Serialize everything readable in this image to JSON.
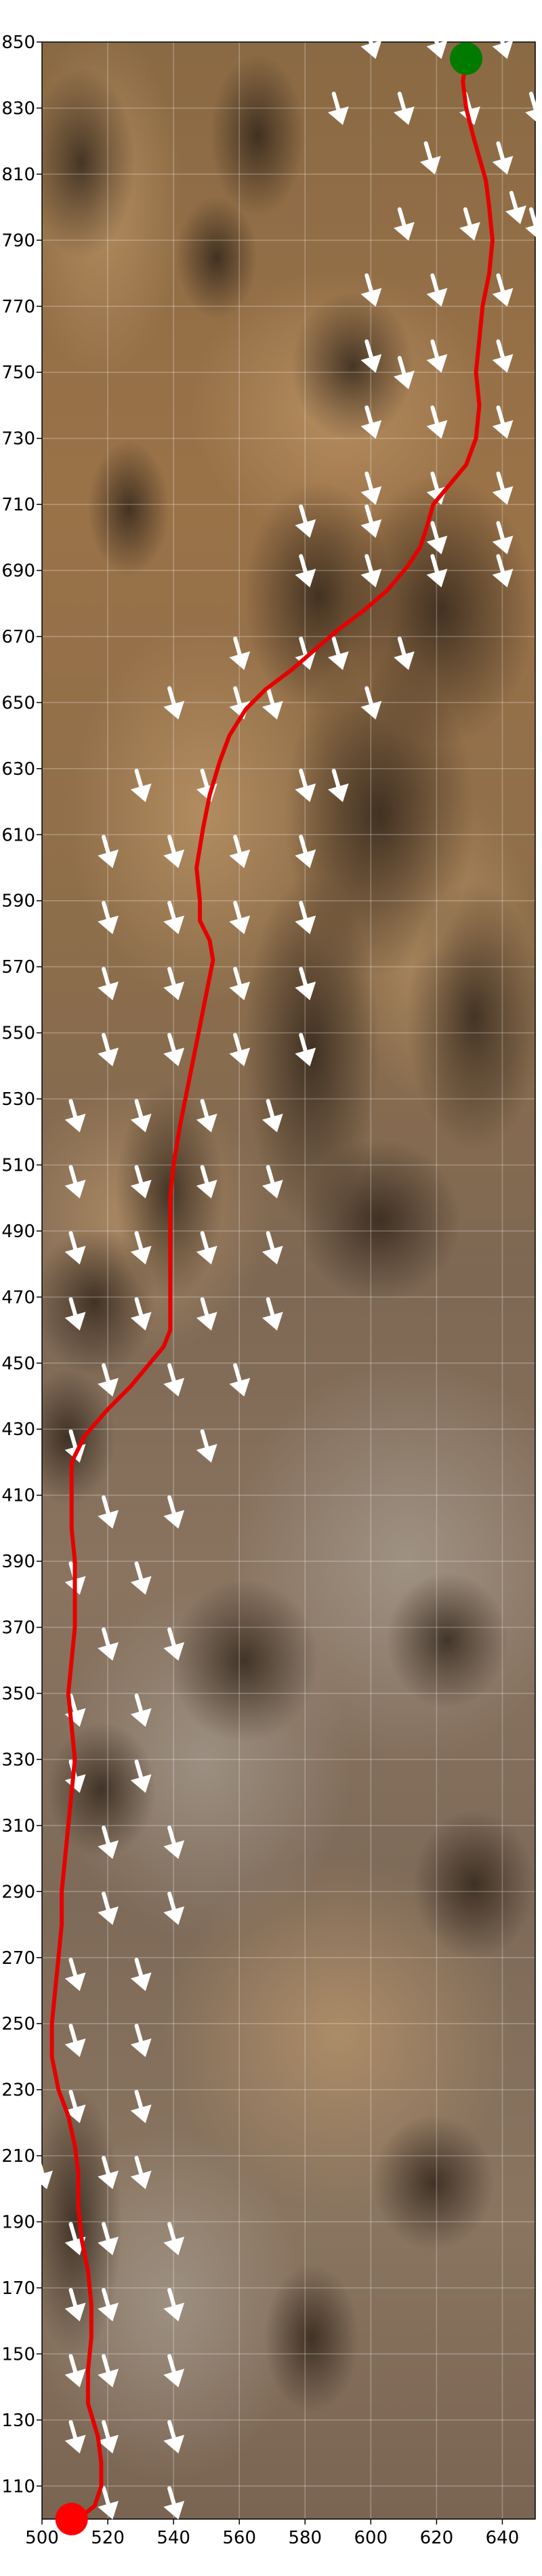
{
  "chart_data": {
    "type": "path_map",
    "xlim": [
      500,
      650
    ],
    "ylim": [
      100,
      850
    ],
    "x_ticks": [
      500,
      520,
      540,
      560,
      580,
      600,
      620,
      640
    ],
    "y_ticks": [
      110,
      130,
      150,
      170,
      190,
      210,
      230,
      250,
      270,
      290,
      310,
      330,
      350,
      370,
      390,
      410,
      430,
      450,
      470,
      490,
      510,
      530,
      550,
      570,
      590,
      610,
      630,
      650,
      670,
      690,
      710,
      730,
      750,
      770,
      790,
      810,
      830,
      850
    ],
    "grid": true,
    "path_color": "#e60000",
    "start_marker": {
      "x": 629,
      "y": 845,
      "color": "#007a00"
    },
    "end_marker": {
      "x": 509,
      "y": 100,
      "color": "#ff0000"
    },
    "path": [
      [
        629,
        845
      ],
      [
        628,
        838
      ],
      [
        629,
        830
      ],
      [
        631,
        822
      ],
      [
        633,
        815
      ],
      [
        635,
        808
      ],
      [
        636,
        800
      ],
      [
        637,
        790
      ],
      [
        636,
        780
      ],
      [
        634,
        770
      ],
      [
        633,
        760
      ],
      [
        632,
        750
      ],
      [
        633,
        740
      ],
      [
        632,
        730
      ],
      [
        629,
        722
      ],
      [
        624,
        716
      ],
      [
        619,
        710
      ],
      [
        617,
        703
      ],
      [
        615,
        697
      ],
      [
        611,
        691
      ],
      [
        605,
        684
      ],
      [
        598,
        678
      ],
      [
        590,
        672
      ],
      [
        583,
        666
      ],
      [
        576,
        660
      ],
      [
        568,
        654
      ],
      [
        562,
        648
      ],
      [
        557,
        640
      ],
      [
        554,
        632
      ],
      [
        551,
        622
      ],
      [
        549,
        612
      ],
      [
        547,
        600
      ],
      [
        548,
        590
      ],
      [
        548,
        584
      ],
      [
        551,
        578
      ],
      [
        552,
        572
      ],
      [
        550,
        562
      ],
      [
        548,
        552
      ],
      [
        546,
        542
      ],
      [
        544,
        532
      ],
      [
        542,
        522
      ],
      [
        540,
        510
      ],
      [
        539,
        500
      ],
      [
        539,
        490
      ],
      [
        539,
        478
      ],
      [
        539,
        466
      ],
      [
        539,
        460
      ],
      [
        537,
        455
      ],
      [
        532,
        449
      ],
      [
        527,
        443
      ],
      [
        520,
        436
      ],
      [
        513,
        428
      ],
      [
        509,
        420
      ],
      [
        509,
        410
      ],
      [
        509,
        400
      ],
      [
        510,
        390
      ],
      [
        510,
        380
      ],
      [
        510,
        370
      ],
      [
        509,
        360
      ],
      [
        508,
        350
      ],
      [
        509,
        340
      ],
      [
        510,
        330
      ],
      [
        509,
        320
      ],
      [
        508,
        310
      ],
      [
        507,
        300
      ],
      [
        506,
        290
      ],
      [
        506,
        280
      ],
      [
        505,
        270
      ],
      [
        504,
        260
      ],
      [
        503,
        250
      ],
      [
        503,
        240
      ],
      [
        505,
        230
      ],
      [
        508,
        222
      ],
      [
        510,
        213
      ],
      [
        511,
        205
      ],
      [
        511,
        195
      ],
      [
        512,
        185
      ],
      [
        514,
        175
      ],
      [
        515,
        165
      ],
      [
        515,
        155
      ],
      [
        514,
        145
      ],
      [
        514,
        135
      ],
      [
        517,
        125
      ],
      [
        518,
        117
      ],
      [
        518,
        110
      ],
      [
        516,
        104
      ],
      [
        511,
        100
      ]
    ],
    "wind_arrows": {
      "color": "#ffffff",
      "direction": "down-right",
      "positions": [
        [
          600,
          850
        ],
        [
          620,
          850
        ],
        [
          640,
          850
        ],
        [
          590,
          830
        ],
        [
          610,
          830
        ],
        [
          630,
          830
        ],
        [
          650,
          830
        ],
        [
          618,
          815
        ],
        [
          640,
          815
        ],
        [
          644,
          800
        ],
        [
          610,
          795
        ],
        [
          630,
          795
        ],
        [
          650,
          795
        ],
        [
          600,
          775
        ],
        [
          620,
          775
        ],
        [
          640,
          775
        ],
        [
          600,
          755
        ],
        [
          610,
          750
        ],
        [
          620,
          755
        ],
        [
          640,
          755
        ],
        [
          600,
          735
        ],
        [
          620,
          735
        ],
        [
          640,
          735
        ],
        [
          600,
          715
        ],
        [
          620,
          715
        ],
        [
          640,
          715
        ],
        [
          580,
          705
        ],
        [
          600,
          705
        ],
        [
          620,
          700
        ],
        [
          640,
          700
        ],
        [
          580,
          690
        ],
        [
          600,
          690
        ],
        [
          620,
          690
        ],
        [
          640,
          690
        ],
        [
          560,
          665
        ],
        [
          580,
          665
        ],
        [
          590,
          665
        ],
        [
          610,
          665
        ],
        [
          540,
          650
        ],
        [
          560,
          650
        ],
        [
          570,
          650
        ],
        [
          600,
          650
        ],
        [
          530,
          625
        ],
        [
          550,
          625
        ],
        [
          580,
          625
        ],
        [
          590,
          625
        ],
        [
          520,
          605
        ],
        [
          540,
          605
        ],
        [
          560,
          605
        ],
        [
          580,
          605
        ],
        [
          520,
          585
        ],
        [
          540,
          585
        ],
        [
          560,
          585
        ],
        [
          580,
          585
        ],
        [
          520,
          565
        ],
        [
          540,
          565
        ],
        [
          560,
          565
        ],
        [
          580,
          565
        ],
        [
          520,
          545
        ],
        [
          540,
          545
        ],
        [
          560,
          545
        ],
        [
          580,
          545
        ],
        [
          510,
          525
        ],
        [
          530,
          525
        ],
        [
          550,
          525
        ],
        [
          570,
          525
        ],
        [
          510,
          505
        ],
        [
          530,
          505
        ],
        [
          550,
          505
        ],
        [
          570,
          505
        ],
        [
          510,
          485
        ],
        [
          530,
          485
        ],
        [
          550,
          485
        ],
        [
          570,
          485
        ],
        [
          510,
          465
        ],
        [
          530,
          465
        ],
        [
          550,
          465
        ],
        [
          570,
          465
        ],
        [
          520,
          445
        ],
        [
          540,
          445
        ],
        [
          560,
          445
        ],
        [
          510,
          425
        ],
        [
          550,
          425
        ],
        [
          520,
          405
        ],
        [
          540,
          405
        ],
        [
          510,
          385
        ],
        [
          530,
          385
        ],
        [
          520,
          365
        ],
        [
          540,
          365
        ],
        [
          510,
          345
        ],
        [
          530,
          345
        ],
        [
          510,
          325
        ],
        [
          530,
          325
        ],
        [
          520,
          305
        ],
        [
          540,
          305
        ],
        [
          520,
          285
        ],
        [
          540,
          285
        ],
        [
          510,
          265
        ],
        [
          530,
          265
        ],
        [
          510,
          245
        ],
        [
          530,
          245
        ],
        [
          510,
          225
        ],
        [
          530,
          225
        ],
        [
          500,
          205
        ],
        [
          520,
          205
        ],
        [
          530,
          205
        ],
        [
          510,
          185
        ],
        [
          520,
          185
        ],
        [
          540,
          185
        ],
        [
          510,
          165
        ],
        [
          520,
          165
        ],
        [
          540,
          165
        ],
        [
          510,
          145
        ],
        [
          520,
          145
        ],
        [
          540,
          145
        ],
        [
          510,
          125
        ],
        [
          520,
          125
        ],
        [
          540,
          125
        ],
        [
          520,
          105
        ],
        [
          540,
          105
        ]
      ]
    }
  }
}
